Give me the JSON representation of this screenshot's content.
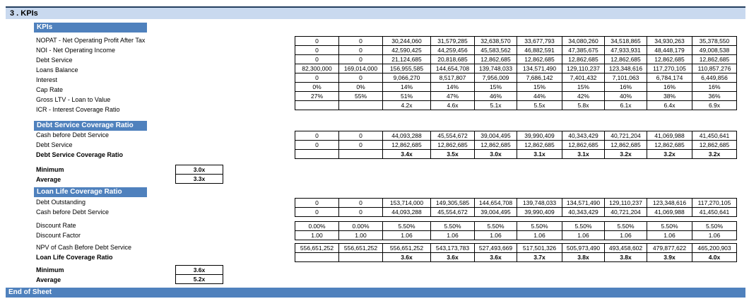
{
  "section": {
    "title": "3 . KPIs"
  },
  "kpis": {
    "heading": "KPIs",
    "rows": [
      {
        "label": "NOPAT - Net Operating Profit After Tax",
        "values": [
          "0",
          "0",
          "30,244,060",
          "31,579,285",
          "32,638,570",
          "33,677,793",
          "34,080,260",
          "34,518,865",
          "34,930,263",
          "35,378,550"
        ]
      },
      {
        "label": "NOI - Net Operating Income",
        "values": [
          "0",
          "0",
          "42,590,425",
          "44,259,456",
          "45,583,562",
          "46,882,591",
          "47,385,675",
          "47,933,931",
          "48,448,179",
          "49,008,538"
        ]
      },
      {
        "label": "Debt Service",
        "values": [
          "0",
          "0",
          "21,124,685",
          "20,818,685",
          "12,862,685",
          "12,862,685",
          "12,862,685",
          "12,862,685",
          "12,862,685",
          "12,862,685"
        ]
      },
      {
        "label": "Loans Balance",
        "values": [
          "82,300,000",
          "169,014,000",
          "156,955,585",
          "144,654,708",
          "139,748,033",
          "134,571,490",
          "129,110,237",
          "123,348,616",
          "117,270,105",
          "110,857,276"
        ]
      },
      {
        "label": "Interest",
        "values": [
          "0",
          "0",
          "9,066,270",
          "8,517,807",
          "7,956,009",
          "7,686,142",
          "7,401,432",
          "7,101,063",
          "6,784,174",
          "6,449,856"
        ]
      },
      {
        "label": "Cap Rate",
        "values": [
          "0%",
          "0%",
          "14%",
          "14%",
          "15%",
          "15%",
          "15%",
          "16%",
          "16%",
          "16%"
        ]
      },
      {
        "label": "Gross LTV - Loan to Value",
        "values": [
          "27%",
          "55%",
          "51%",
          "47%",
          "46%",
          "44%",
          "42%",
          "40%",
          "38%",
          "36%"
        ]
      },
      {
        "label": "ICR - Interest Coverage Ratio",
        "values": [
          "",
          "",
          "4.2x",
          "4.6x",
          "5.1x",
          "5.5x",
          "5.8x",
          "6.1x",
          "6.4x",
          "6.9x"
        ]
      }
    ]
  },
  "dscr": {
    "heading": "Debt Service Coverage Ratio",
    "rows": [
      {
        "label": "Cash before Debt Service",
        "values": [
          "0",
          "0",
          "44,093,288",
          "45,554,672",
          "39,004,495",
          "39,990,409",
          "40,343,429",
          "40,721,204",
          "41,069,988",
          "41,450,641"
        ]
      },
      {
        "label": "Debt Service",
        "values": [
          "0",
          "0",
          "12,862,685",
          "12,862,685",
          "12,862,685",
          "12,862,685",
          "12,862,685",
          "12,862,685",
          "12,862,685",
          "12,862,685"
        ]
      },
      {
        "label": "Debt Service Coverage Ratio",
        "values": [
          "",
          "",
          "3.4x",
          "3.5x",
          "3.0x",
          "3.1x",
          "3.1x",
          "3.2x",
          "3.2x",
          "3.2x"
        ]
      }
    ],
    "minimum_label": "Minimum",
    "minimum": "3.0x",
    "average_label": "Average",
    "average": "3.3x"
  },
  "llcr": {
    "heading": "Loan Life Coverage Ratio",
    "rows_a": [
      {
        "label": "Debt Outstanding",
        "values": [
          "0",
          "0",
          "153,714,000",
          "149,305,585",
          "144,654,708",
          "139,748,033",
          "134,571,490",
          "129,110,237",
          "123,348,616",
          "117,270,105"
        ]
      },
      {
        "label": "Cash before Debt Service",
        "values": [
          "0",
          "0",
          "44,093,288",
          "45,554,672",
          "39,004,495",
          "39,990,409",
          "40,343,429",
          "40,721,204",
          "41,069,988",
          "41,450,641"
        ]
      }
    ],
    "rows_b": [
      {
        "label": "Discount Rate",
        "values": [
          "0.00%",
          "0.00%",
          "5.50%",
          "5.50%",
          "5.50%",
          "5.50%",
          "5.50%",
          "5.50%",
          "5.50%",
          "5.50%"
        ]
      },
      {
        "label": "Discount Factor",
        "values": [
          "1.00",
          "1.00",
          "1.06",
          "1.06",
          "1.06",
          "1.06",
          "1.06",
          "1.06",
          "1.06",
          "1.06"
        ]
      }
    ],
    "rows_c": [
      {
        "label": "NPV of Cash Before Debt Service",
        "values": [
          "556,651,252",
          "556,651,252",
          "556,651,252",
          "543,173,783",
          "527,493,669",
          "517,501,326",
          "505,973,490",
          "493,458,602",
          "479,877,622",
          "465,200,903"
        ]
      },
      {
        "label": "Loan Life Coverage Ratio",
        "values": [
          "",
          "",
          "3.6x",
          "3.6x",
          "3.6x",
          "3.7x",
          "3.8x",
          "3.8x",
          "3.9x",
          "4.0x"
        ]
      }
    ],
    "minimum_label": "Minimum",
    "minimum": "3.6x",
    "average_label": "Average",
    "average": "5.2x"
  },
  "footer": {
    "label": "End of Sheet"
  }
}
